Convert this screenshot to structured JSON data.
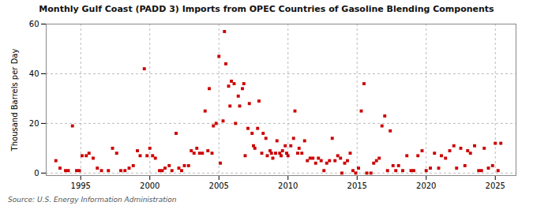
{
  "chart_data": {
    "type": "scatter",
    "title": "Monthly Gulf Coast (PADD 3) Imports from OPEC Countries of Gasoline Blending Components",
    "ylabel": "Thousand Barrels per Day",
    "caption": "Source: U.S. Energy Information Administration",
    "color": "#cc0000",
    "marker": "square",
    "grid": true,
    "xlim": [
      1992.5,
      2026.5
    ],
    "ylim": [
      -1,
      60
    ],
    "xticks": [
      1995,
      2000,
      2005,
      2010,
      2015,
      2020,
      2025
    ],
    "yticks": [
      0,
      20,
      40,
      60
    ],
    "x": [
      1993.2,
      1993.5,
      1993.9,
      1994.1,
      1994.4,
      1994.7,
      1994.9,
      1995.1,
      1995.4,
      1995.6,
      1995.9,
      1996.2,
      1996.5,
      1997.0,
      1997.3,
      1997.6,
      1997.9,
      1998.2,
      1998.5,
      1998.8,
      1999.1,
      1999.3,
      1999.6,
      1999.8,
      2000.0,
      2000.2,
      2000.4,
      2000.7,
      2000.9,
      2001.1,
      2001.4,
      2001.6,
      2001.9,
      2002.1,
      2002.3,
      2002.5,
      2002.8,
      2003.0,
      2003.2,
      2003.4,
      2003.6,
      2003.8,
      2004.0,
      2004.2,
      2004.3,
      2004.5,
      2004.6,
      2004.8,
      2005.0,
      2005.1,
      2005.3,
      2005.4,
      2005.5,
      2005.7,
      2005.8,
      2005.9,
      2006.1,
      2006.2,
      2006.4,
      2006.5,
      2006.7,
      2006.8,
      2006.9,
      2007.1,
      2007.2,
      2007.4,
      2007.5,
      2007.6,
      2007.8,
      2007.9,
      2008.1,
      2008.2,
      2008.4,
      2008.5,
      2008.7,
      2008.8,
      2008.9,
      2009.1,
      2009.2,
      2009.4,
      2009.5,
      2009.6,
      2009.8,
      2009.9,
      2010.0,
      2010.2,
      2010.4,
      2010.5,
      2010.7,
      2010.8,
      2011.0,
      2011.2,
      2011.4,
      2011.6,
      2011.8,
      2012.0,
      2012.2,
      2012.4,
      2012.6,
      2012.8,
      2013.0,
      2013.2,
      2013.4,
      2013.6,
      2013.8,
      2013.9,
      2014.1,
      2014.3,
      2014.5,
      2014.7,
      2014.9,
      2015.1,
      2015.3,
      2015.5,
      2015.7,
      2016.0,
      2016.2,
      2016.4,
      2016.6,
      2016.8,
      2017.0,
      2017.2,
      2017.4,
      2017.6,
      2017.8,
      2018.0,
      2018.3,
      2018.6,
      2018.9,
      2019.1,
      2019.4,
      2019.7,
      2020.0,
      2020.3,
      2020.6,
      2020.9,
      2021.1,
      2021.4,
      2021.7,
      2022.0,
      2022.2,
      2022.5,
      2022.8,
      2023.0,
      2023.2,
      2023.5,
      2023.8,
      2024.0,
      2024.2,
      2024.5,
      2024.8,
      2025.0,
      2025.2,
      2025.4
    ],
    "values": [
      5,
      2,
      1,
      1,
      19,
      1,
      1,
      7,
      7,
      8,
      6,
      2,
      1,
      1,
      10,
      8,
      1,
      1,
      2,
      3,
      9,
      7,
      42,
      7,
      10,
      7,
      6,
      1,
      1,
      2,
      3,
      1,
      16,
      2,
      1,
      3,
      3,
      9,
      8,
      10,
      8,
      8,
      25,
      9,
      34,
      8,
      19,
      20,
      47,
      4,
      21,
      57,
      44,
      35,
      27,
      37,
      36,
      20,
      31,
      27,
      34,
      36,
      7,
      18,
      28,
      16,
      11,
      10,
      18,
      29,
      8,
      16,
      14,
      7,
      9,
      8,
      6,
      8,
      13,
      8,
      7,
      9,
      11,
      8,
      7,
      11,
      14,
      25,
      8,
      10,
      8,
      13,
      5,
      6,
      6,
      4,
      6,
      5,
      1,
      4,
      5,
      14,
      5,
      7,
      6,
      0,
      4,
      5,
      8,
      1,
      0,
      2,
      25,
      36,
      0,
      0,
      4,
      5,
      6,
      19,
      23,
      1,
      17,
      3,
      1,
      3,
      1,
      7,
      1,
      1,
      7,
      9,
      1,
      2,
      8,
      2,
      7,
      6,
      9,
      11,
      2,
      10,
      3,
      9,
      8,
      11,
      1,
      1,
      10,
      2,
      3,
      12,
      1,
      12
    ]
  }
}
